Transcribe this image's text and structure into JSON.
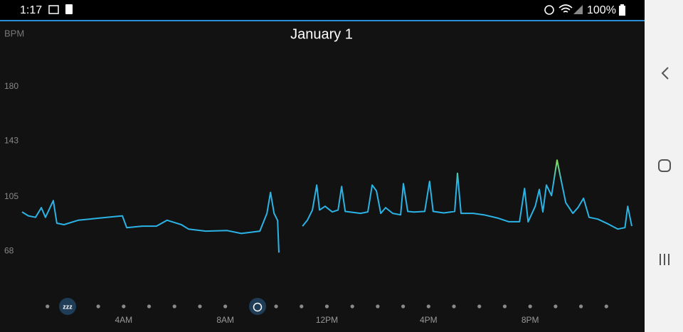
{
  "status_bar": {
    "time": "1:17",
    "battery": "100%"
  },
  "chart_data": {
    "type": "line",
    "title": "January 1",
    "y_label": "BPM",
    "color": "#2bb3e6",
    "highlight_color": "#86e05a",
    "x": [
      0,
      0.25,
      0.53,
      0.76,
      0.92,
      1.23,
      1.37,
      1.65,
      2.21,
      2.77,
      3.33,
      3.95,
      4.12,
      4.73,
      5.29,
      5.71,
      6.27,
      6.55,
      7.23,
      8.07,
      8.63,
      9.36,
      9.64,
      9.78,
      9.92,
      10.06,
      10.11,
      10.67,
      11.04,
      11.23,
      11.43,
      11.6,
      11.71,
      11.93,
      12.21,
      12.44,
      12.58,
      12.72,
      13.33,
      13.61,
      13.78,
      13.95,
      14.12,
      14.31,
      14.59,
      14.9,
      15.01,
      15.18,
      15.43,
      15.85,
      16.04,
      16.18,
      16.6,
      17.03,
      17.14,
      17.28,
      17.76,
      18.18,
      18.74,
      19.16,
      19.58,
      19.78,
      19.92,
      20.2,
      20.36,
      20.5,
      20.64,
      20.84,
      21.06,
      21.2,
      21.4,
      21.68,
      21.88,
      22.1,
      22.32,
      22.66,
      23.08,
      23.45,
      23.73,
      23.84,
      24
    ],
    "values": [
      94.7,
      92,
      91,
      97.6,
      91,
      102.4,
      87,
      86,
      89,
      90,
      91,
      92,
      84,
      85,
      85,
      89,
      86,
      83,
      81.6,
      82,
      80,
      81.6,
      93.7,
      108,
      93.7,
      88.8,
      67,
      null,
      85,
      89,
      96,
      113,
      96,
      98.5,
      94.7,
      96,
      112,
      95,
      93.7,
      94.7,
      113,
      109,
      93.7,
      97.6,
      93.7,
      92.7,
      114,
      95,
      94.6,
      95,
      115.5,
      95,
      94,
      95,
      121,
      93.7,
      93.7,
      92.7,
      90.4,
      88,
      88,
      110.7,
      87.9,
      98.5,
      110,
      94.7,
      113,
      105.8,
      130,
      118,
      101,
      93.7,
      97.6,
      104,
      91,
      89.8,
      86.4,
      83,
      84,
      98.5,
      85
    ],
    "xlim": [
      0,
      24
    ],
    "ylim": [
      40,
      210
    ],
    "xticks": [
      {
        "value": 4,
        "label": "4AM"
      },
      {
        "value": 8,
        "label": "8AM"
      },
      {
        "value": 12,
        "label": "12PM"
      },
      {
        "value": 16,
        "label": "4PM"
      },
      {
        "value": 20,
        "label": "8PM"
      }
    ],
    "xminorticks": [
      1,
      3,
      4,
      5,
      6,
      7,
      8,
      10,
      11,
      12,
      13,
      14,
      15,
      16,
      17,
      18,
      19,
      20,
      21,
      22,
      23
    ],
    "yticks": [
      68,
      105,
      143,
      180
    ]
  }
}
